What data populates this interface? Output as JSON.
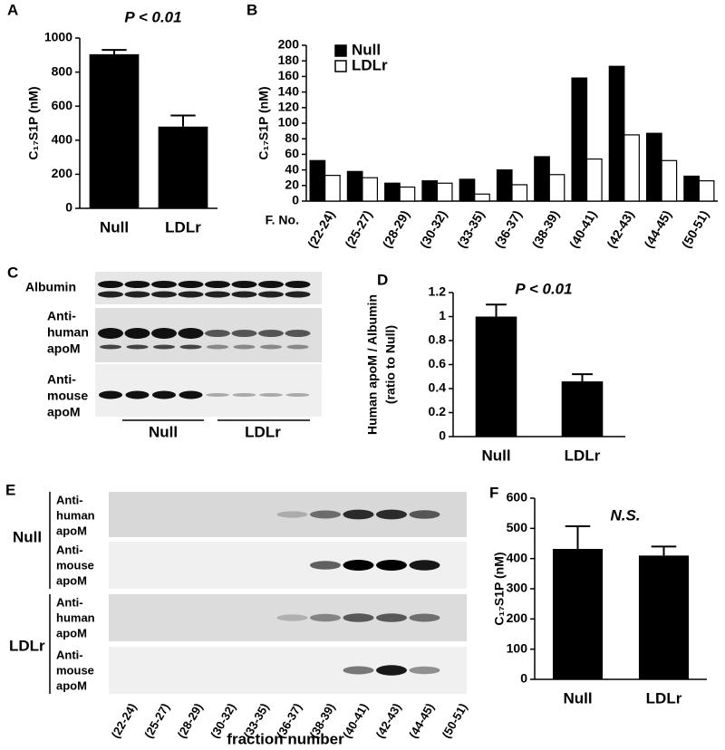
{
  "chart_data": [
    {
      "type": "bar",
      "label": "A",
      "annotation": "P < 0.01",
      "ylabel": "C₁₇S1P (nM)",
      "categories": [
        "Null",
        "LDLr"
      ],
      "values": [
        905,
        480
      ],
      "errors": [
        25,
        65
      ],
      "color": "#000000",
      "ylim": [
        0,
        1000
      ],
      "yticks": [
        0,
        200,
        400,
        600,
        800,
        1000
      ]
    },
    {
      "type": "bar",
      "label": "B",
      "ylabel": "C₁₇S1P (nM)",
      "xlabel": "F. No.",
      "categories": [
        "(22-24)",
        "(25-27)",
        "(28-29)",
        "(30-32)",
        "(33-35)",
        "(36-37)",
        "(38-39)",
        "(40-41)",
        "(42-43)",
        "(44-45)",
        "(50-51)"
      ],
      "series": [
        {
          "name": "Null",
          "color": "#000000",
          "values": [
            52,
            38,
            23,
            26,
            28,
            40,
            57,
            158,
            173,
            87,
            32
          ]
        },
        {
          "name": "LDLr",
          "color": "#ffffff",
          "values": [
            33,
            30,
            18,
            23,
            9,
            21,
            34,
            54,
            85,
            52,
            26
          ]
        }
      ],
      "ylim": [
        0,
        200
      ],
      "yticks": [
        0,
        20,
        40,
        60,
        80,
        100,
        120,
        140,
        160,
        180,
        200
      ],
      "legend": "top-left"
    },
    {
      "type": "bar",
      "label": "D",
      "annotation": "P < 0.01",
      "ylabel": "Human apoM / Albumin",
      "ylabel2": "(ratio to Null)",
      "categories": [
        "Null",
        "LDLr"
      ],
      "values": [
        1.0,
        0.46
      ],
      "errors": [
        0.1,
        0.06
      ],
      "color": "#000000",
      "ylim": [
        0,
        1.2
      ],
      "yticks": [
        0,
        0.2,
        0.4,
        0.6,
        0.8,
        1,
        1.2
      ]
    },
    {
      "type": "bar",
      "label": "F",
      "annotation": "N.S.",
      "ylabel": "C₁₇S1P (nM)",
      "categories": [
        "Null",
        "LDLr"
      ],
      "values": [
        432,
        410
      ],
      "errors": [
        75,
        30
      ],
      "color": "#000000",
      "ylim": [
        0,
        600
      ],
      "yticks": [
        0,
        100,
        200,
        300,
        400,
        500,
        600
      ]
    }
  ],
  "blot_c": {
    "label": "C",
    "rows": [
      [
        "Albumin"
      ],
      [
        "Anti-",
        "human",
        "apoM"
      ],
      [
        "Anti-",
        "mouse",
        "apoM"
      ]
    ],
    "groups": [
      "Null",
      "LDLr"
    ]
  },
  "blot_e": {
    "label": "E",
    "groups": [
      "Null",
      "LDLr"
    ],
    "rows": [
      [
        "Anti-",
        "human",
        "apoM"
      ],
      [
        "Anti-",
        "mouse",
        "apoM"
      ],
      [
        "Anti-",
        "human",
        "apoM"
      ],
      [
        "Anti-",
        "mouse",
        "apoM"
      ]
    ],
    "fractions": [
      "(22-24)",
      "(25-27)",
      "(28-29)",
      "(30-32)",
      "(33-35)",
      "(36-37)",
      "(38-39)",
      "(40-41)",
      "(42-43)",
      "(44-45)",
      "(50-51)"
    ],
    "xlabel": "fraction number"
  }
}
